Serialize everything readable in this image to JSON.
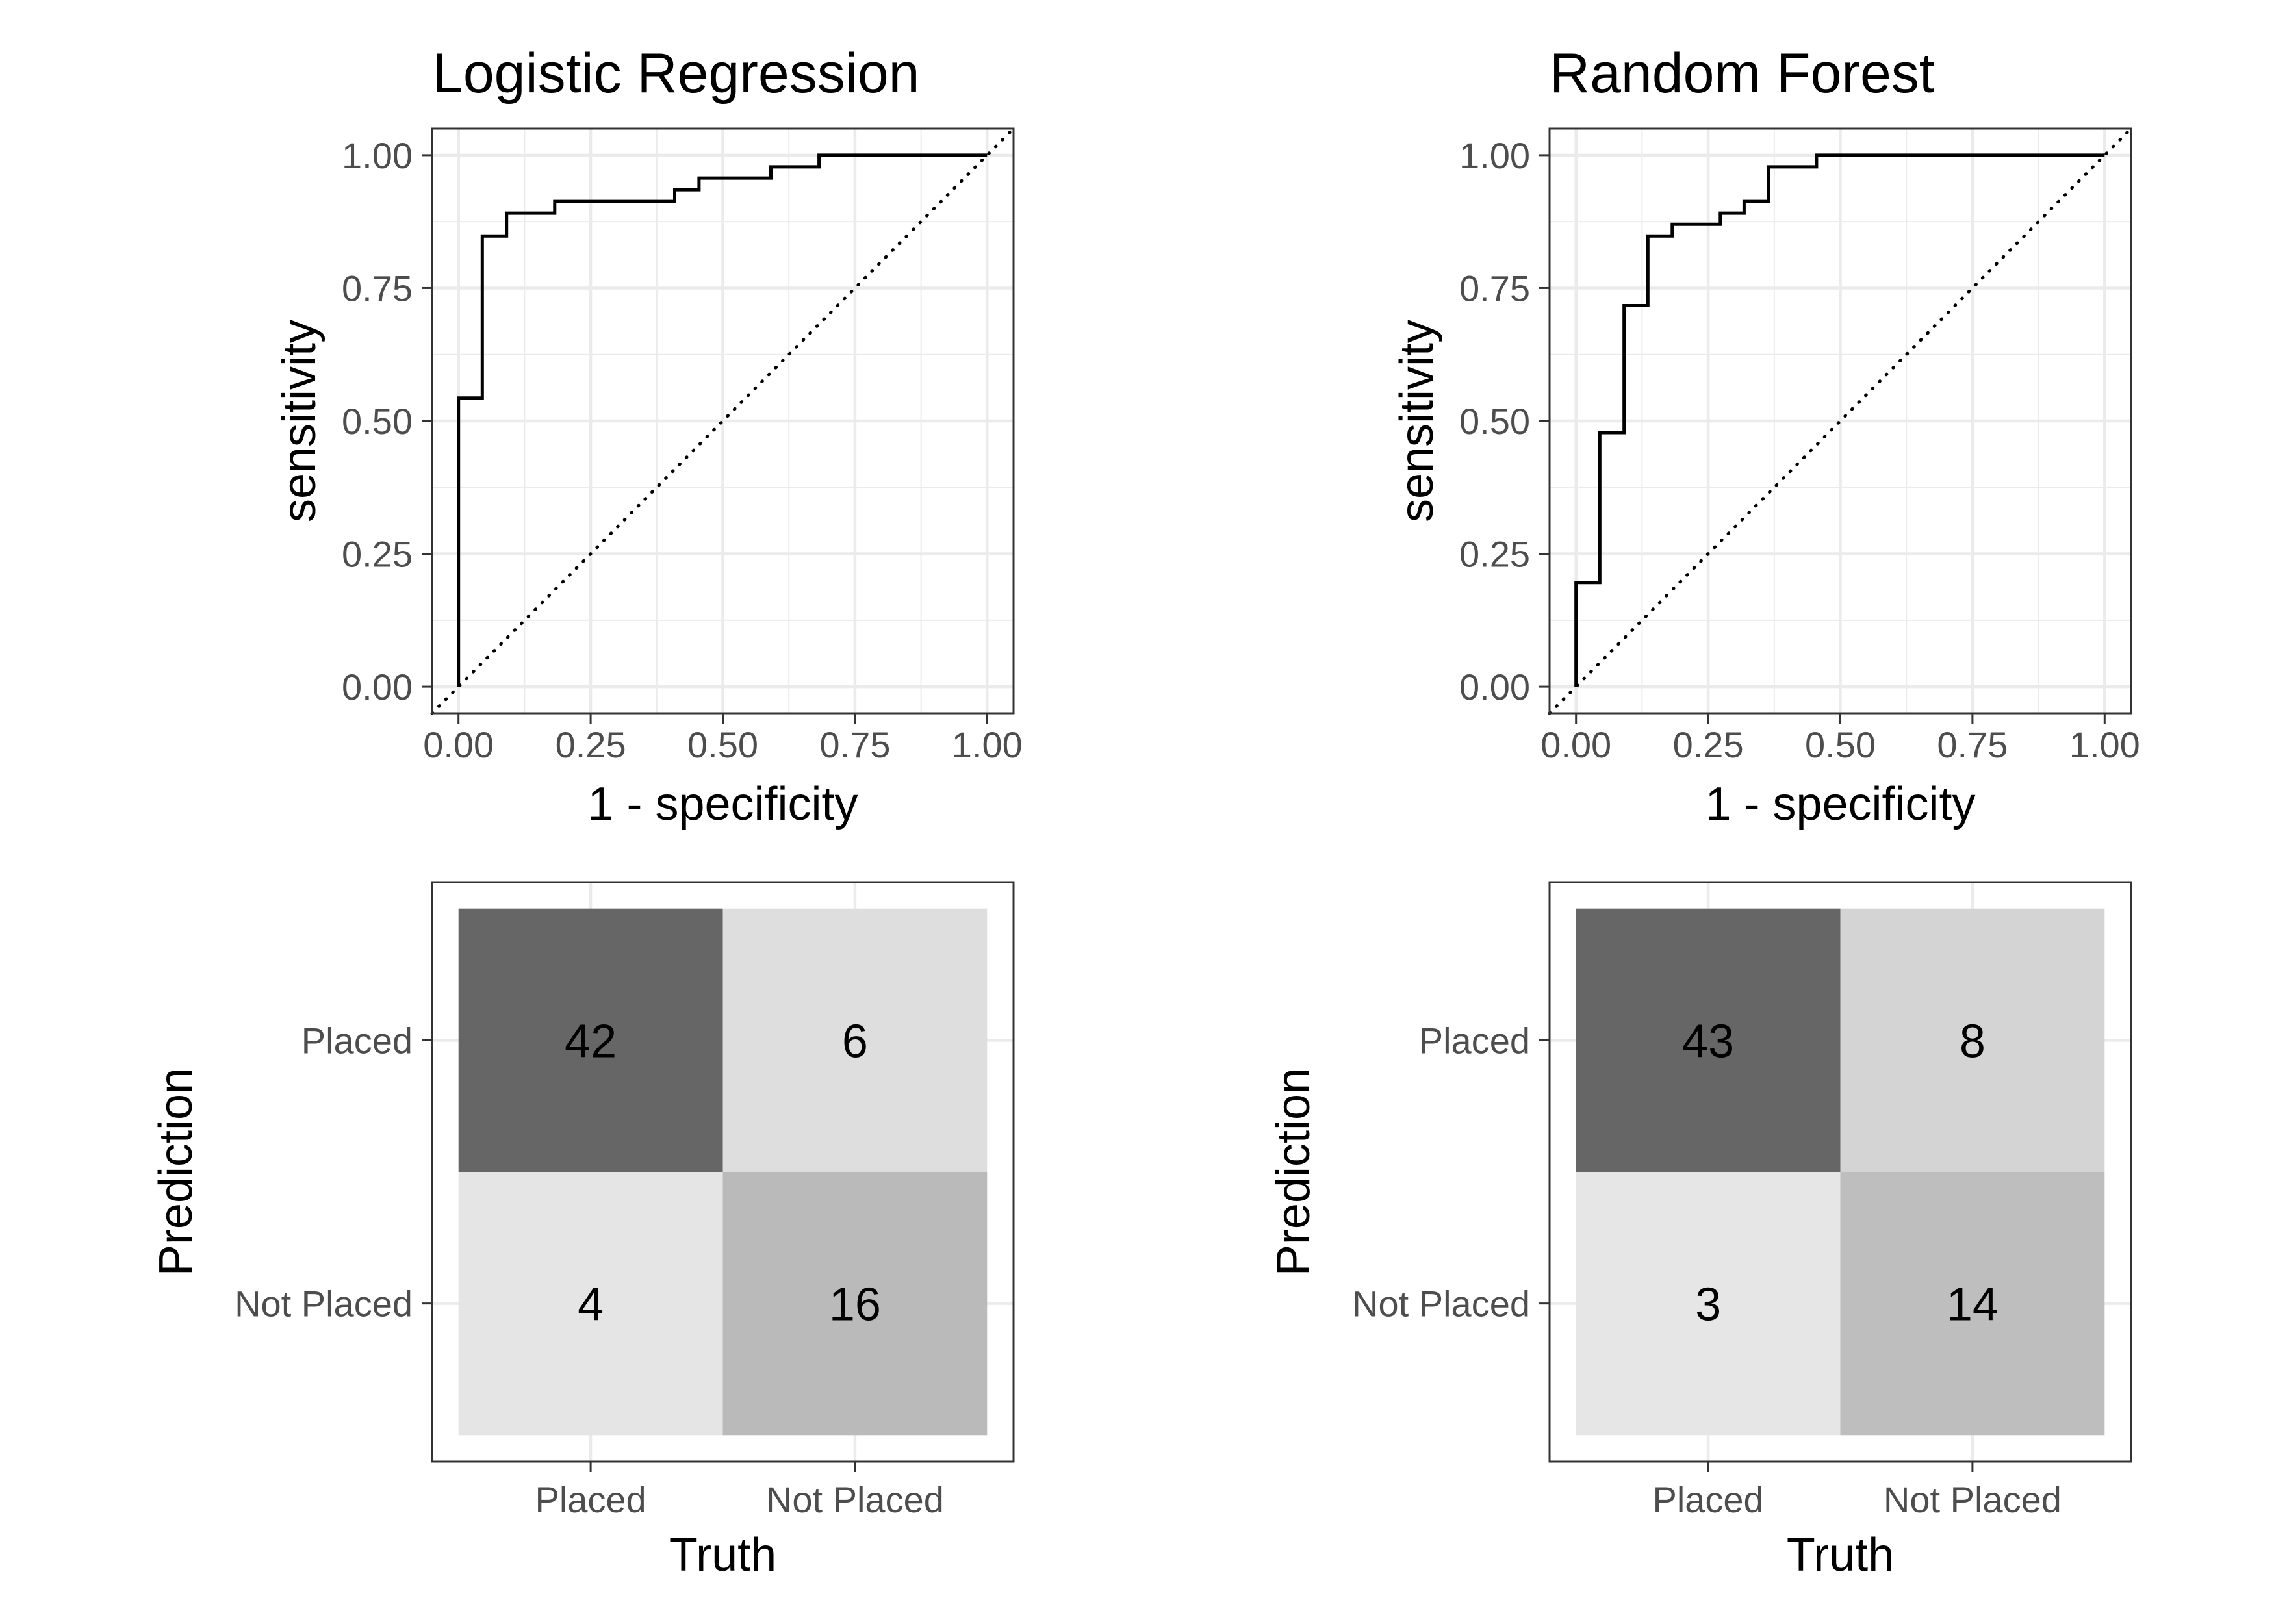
{
  "chart_data": [
    {
      "type": "line",
      "title": "Logistic Regression",
      "xlabel": "1 - specificity",
      "ylabel": "sensitivity",
      "xlim": [
        0,
        1
      ],
      "ylim": [
        0,
        1
      ],
      "x_ticks": [
        "0.00",
        "0.25",
        "0.50",
        "0.75",
        "1.00"
      ],
      "y_ticks": [
        "0.00",
        "0.25",
        "0.50",
        "0.75",
        "1.00"
      ],
      "grid": true,
      "reference_line": "diagonal dotted",
      "points": [
        [
          0,
          0
        ],
        [
          0,
          0.543
        ],
        [
          0.045,
          0.543
        ],
        [
          0.045,
          0.848
        ],
        [
          0.091,
          0.848
        ],
        [
          0.091,
          0.891
        ],
        [
          0.182,
          0.891
        ],
        [
          0.182,
          0.913
        ],
        [
          0.409,
          0.913
        ],
        [
          0.409,
          0.935
        ],
        [
          0.455,
          0.935
        ],
        [
          0.455,
          0.957
        ],
        [
          0.591,
          0.957
        ],
        [
          0.591,
          0.978
        ],
        [
          0.682,
          0.978
        ],
        [
          0.682,
          1.0
        ],
        [
          1.0,
          1.0
        ]
      ]
    },
    {
      "type": "line",
      "title": "Random Forest",
      "xlabel": "1 - specificity",
      "ylabel": "sensitivity",
      "xlim": [
        0,
        1
      ],
      "ylim": [
        0,
        1
      ],
      "x_ticks": [
        "0.00",
        "0.25",
        "0.50",
        "0.75",
        "1.00"
      ],
      "y_ticks": [
        "0.00",
        "0.25",
        "0.50",
        "0.75",
        "1.00"
      ],
      "grid": true,
      "reference_line": "diagonal dotted",
      "points": [
        [
          0,
          0
        ],
        [
          0,
          0.196
        ],
        [
          0.045,
          0.196
        ],
        [
          0.045,
          0.478
        ],
        [
          0.091,
          0.478
        ],
        [
          0.091,
          0.717
        ],
        [
          0.136,
          0.717
        ],
        [
          0.136,
          0.848
        ],
        [
          0.182,
          0.848
        ],
        [
          0.182,
          0.87
        ],
        [
          0.273,
          0.87
        ],
        [
          0.273,
          0.891
        ],
        [
          0.318,
          0.891
        ],
        [
          0.318,
          0.913
        ],
        [
          0.364,
          0.913
        ],
        [
          0.364,
          0.978
        ],
        [
          0.455,
          0.978
        ],
        [
          0.455,
          1.0
        ],
        [
          1.0,
          1.0
        ]
      ]
    },
    {
      "type": "heatmap",
      "xlabel": "Truth",
      "ylabel": "Prediction",
      "x_categories": [
        "Placed",
        "Not Placed"
      ],
      "y_categories": [
        "Placed",
        "Not Placed"
      ],
      "cells": [
        {
          "truth": "Placed",
          "prediction": "Placed",
          "value": 42,
          "color": "#666666"
        },
        {
          "truth": "Not Placed",
          "prediction": "Placed",
          "value": 6,
          "color": "#dedede"
        },
        {
          "truth": "Placed",
          "prediction": "Not Placed",
          "value": 4,
          "color": "#e5e5e5"
        },
        {
          "truth": "Not Placed",
          "prediction": "Not Placed",
          "value": 16,
          "color": "#bababa"
        }
      ]
    },
    {
      "type": "heatmap",
      "xlabel": "Truth",
      "ylabel": "Prediction",
      "x_categories": [
        "Placed",
        "Not Placed"
      ],
      "y_categories": [
        "Placed",
        "Not Placed"
      ],
      "cells": [
        {
          "truth": "Placed",
          "prediction": "Placed",
          "value": 43,
          "color": "#666666"
        },
        {
          "truth": "Not Placed",
          "prediction": "Placed",
          "value": 8,
          "color": "#d4d4d4"
        },
        {
          "truth": "Placed",
          "prediction": "Not Placed",
          "value": 3,
          "color": "#e6e6e6"
        },
        {
          "truth": "Not Placed",
          "prediction": "Not Placed",
          "value": 14,
          "color": "#bebebe"
        }
      ]
    }
  ],
  "colors": {
    "grid": "#ebebeb",
    "panel_border": "#333333",
    "curve": "#000000",
    "tick_label": "#4d4d4d",
    "tick_mark": "#333333"
  }
}
